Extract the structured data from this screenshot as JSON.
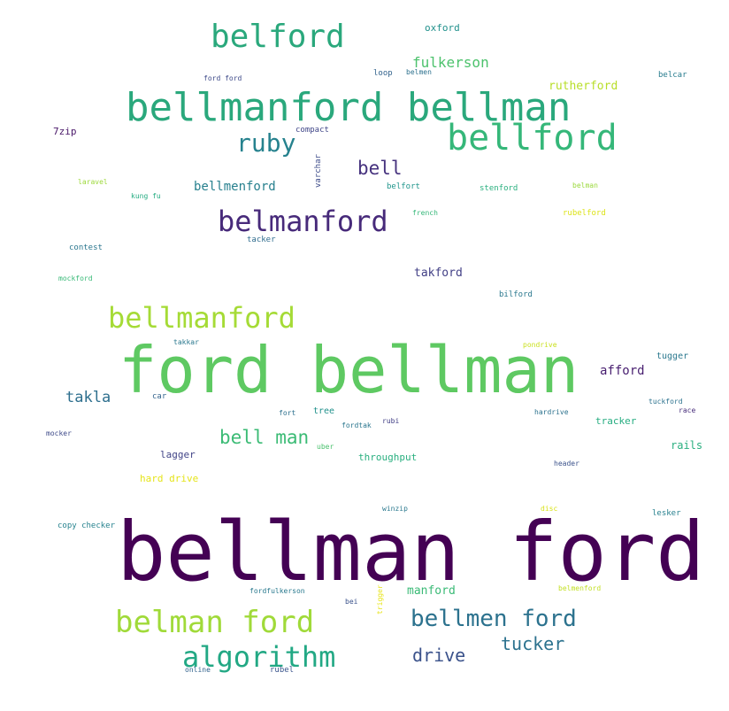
{
  "words": [
    {
      "text": "bellman ford",
      "color": "#440154"
    },
    {
      "text": "ford bellman",
      "color": "#5ec962"
    },
    {
      "text": "bellmanford bellman",
      "color": "#2aa87c"
    },
    {
      "text": "bellford",
      "color": "#35b779"
    },
    {
      "text": "belford",
      "color": "#2aa87c"
    },
    {
      "text": "belmanford",
      "color": "#472a7a"
    },
    {
      "text": "bellmanford",
      "color": "#a5db36"
    },
    {
      "text": "belman ford",
      "color": "#a0da39"
    },
    {
      "text": "algorithm",
      "color": "#22a884"
    },
    {
      "text": "bellmen ford",
      "color": "#2c728e"
    },
    {
      "text": "ruby",
      "color": "#26828e"
    },
    {
      "text": "bell man",
      "color": "#3bbb75"
    },
    {
      "text": "drive",
      "color": "#3b528b"
    },
    {
      "text": "tucker",
      "color": "#2c728e"
    },
    {
      "text": "bell",
      "color": "#46327e"
    },
    {
      "text": "fulkerson",
      "color": "#4cc26c"
    },
    {
      "text": "takla",
      "color": "#2e6f8e"
    },
    {
      "text": "bellmenford",
      "color": "#27808e"
    },
    {
      "text": "afford",
      "color": "#481f70"
    },
    {
      "text": "takford",
      "color": "#424086"
    },
    {
      "text": "rutherford",
      "color": "#b8de29"
    },
    {
      "text": "oxford",
      "color": "#21918c"
    },
    {
      "text": "manford",
      "color": "#3aba76"
    },
    {
      "text": "tugger",
      "color": "#2a788e"
    },
    {
      "text": "tracker",
      "color": "#27ad81"
    },
    {
      "text": "rails",
      "color": "#29af7f"
    },
    {
      "text": "throughput",
      "color": "#29af7f"
    },
    {
      "text": "lagger",
      "color": "#414487"
    },
    {
      "text": "hard drive",
      "color": "#e5e419"
    },
    {
      "text": "tree",
      "color": "#21918c"
    },
    {
      "text": "7zip",
      "color": "#481668"
    },
    {
      "text": "compact",
      "color": "#404688"
    },
    {
      "text": "ford ford",
      "color": "#3e4a89"
    },
    {
      "text": "loop",
      "color": "#33638d"
    },
    {
      "text": "belmen",
      "color": "#2d718e"
    },
    {
      "text": "belcar",
      "color": "#287c8e"
    },
    {
      "text": "varchar",
      "color": "#3e4c8a"
    },
    {
      "text": "belfort",
      "color": "#1f958b"
    },
    {
      "text": "stenford",
      "color": "#2ab07f"
    },
    {
      "text": "belman",
      "color": "#9bd93c"
    },
    {
      "text": "laravel",
      "color": "#9dd93b"
    },
    {
      "text": "kung fu",
      "color": "#25ac82"
    },
    {
      "text": "french",
      "color": "#35b779"
    },
    {
      "text": "rubelford",
      "color": "#dde318"
    },
    {
      "text": "contest",
      "color": "#2a768e"
    },
    {
      "text": "tacker",
      "color": "#2f6c8e"
    },
    {
      "text": "mockford",
      "color": "#38b977"
    },
    {
      "text": "bilford",
      "color": "#2a788e"
    },
    {
      "text": "takkar",
      "color": "#2a788e"
    },
    {
      "text": "pondrive",
      "color": "#cae11f"
    },
    {
      "text": "car",
      "color": "#33638d"
    },
    {
      "text": "tuckford",
      "color": "#2c728e"
    },
    {
      "text": "race",
      "color": "#472d7b"
    },
    {
      "text": "fort",
      "color": "#2d708e"
    },
    {
      "text": "rubi",
      "color": "#424086"
    },
    {
      "text": "hardrive",
      "color": "#2c728e"
    },
    {
      "text": "mocker",
      "color": "#3e4a89"
    },
    {
      "text": "fordtak",
      "color": "#2a768e"
    },
    {
      "text": "uber",
      "color": "#4ac16d"
    },
    {
      "text": "header",
      "color": "#3b528b"
    },
    {
      "text": "winzip",
      "color": "#2a788e"
    },
    {
      "text": "disc",
      "color": "#d8e219"
    },
    {
      "text": "lesker",
      "color": "#27808e"
    },
    {
      "text": "copy checker",
      "color": "#26828e"
    },
    {
      "text": "fordfulkerson",
      "color": "#29798e"
    },
    {
      "text": "trigger",
      "color": "#e7e419"
    },
    {
      "text": "belmenford",
      "color": "#c2df23"
    },
    {
      "text": "bei",
      "color": "#3b528b"
    },
    {
      "text": "online",
      "color": "#33638d"
    },
    {
      "text": "rubel",
      "color": "#3a548c"
    }
  ]
}
